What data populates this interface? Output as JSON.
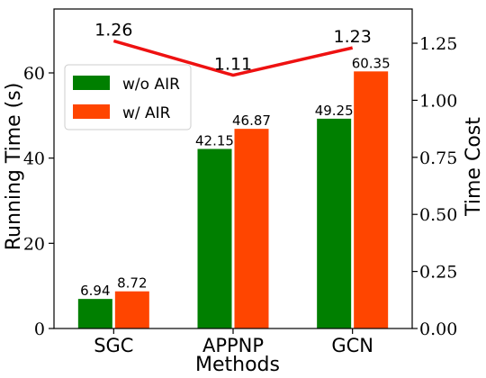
{
  "chart_data": {
    "type": "bar",
    "xlabel": "Methods",
    "ylabel": "Running Time (s)",
    "y2label": "Time Cost",
    "categories": [
      "SGC",
      "APPNP",
      "GCN"
    ],
    "ylim": [
      0,
      75
    ],
    "yticks": [
      0,
      20,
      40,
      60
    ],
    "ytick_labels": [
      "0",
      "20",
      "40",
      "60"
    ],
    "y2lim": [
      0,
      1.4
    ],
    "y2ticks": [
      0,
      0.25,
      0.5,
      0.75,
      1.0,
      1.25
    ],
    "y2tick_labels": [
      "0.00",
      "0.25",
      "0.50",
      "0.75",
      "1.00",
      "1.25"
    ],
    "series": [
      {
        "name": "w/o AIR",
        "values": [
          6.94,
          42.15,
          49.25
        ],
        "labels": [
          "6.94",
          "42.15",
          "49.25"
        ],
        "color": "#007f00"
      },
      {
        "name": "w/ AIR",
        "values": [
          8.72,
          46.87,
          60.35
        ],
        "labels": [
          "8.72",
          "46.87",
          "60.35"
        ],
        "color": "#ff4500"
      }
    ],
    "line_series": {
      "values": [
        1.26,
        1.11,
        1.23
      ],
      "labels": [
        "1.26",
        "1.11",
        "1.23"
      ],
      "color": "#ee1111",
      "axis": "right"
    },
    "legend": {
      "position": "upper-left"
    },
    "grid": false
  }
}
